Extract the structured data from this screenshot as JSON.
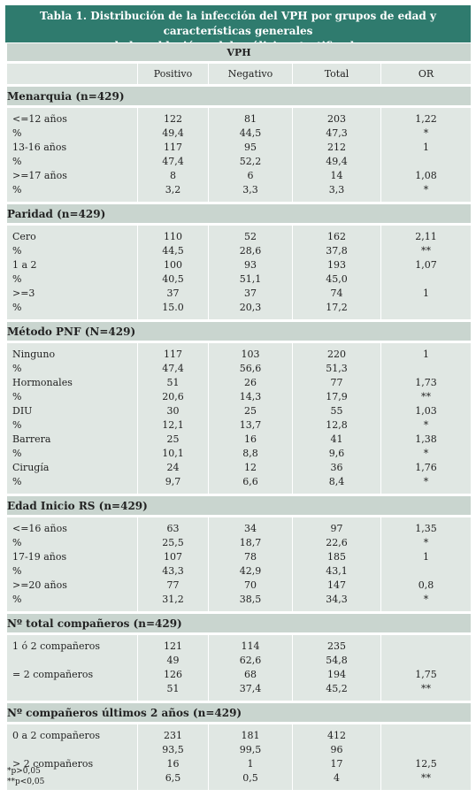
{
  "title_line1": "Tabla 1. Distribución de la infección del VPH por grupos de edad y características generales",
  "title_line2": "de la población y del análisis estratificado.",
  "vph_header": "VPH",
  "columns": [
    "",
    "Positivo",
    "Negativo",
    "Total",
    "OR"
  ],
  "sections": [
    {
      "heading": "Menarquia (n=429)",
      "rows": [
        [
          "<=12 años",
          "122",
          "81",
          "203",
          "1,22"
        ],
        [
          "%",
          "49,4",
          "44,5",
          "47,3",
          "*"
        ],
        [
          "13-16 años",
          "117",
          "95",
          "212",
          "1"
        ],
        [
          "%",
          "47,4",
          "52,2",
          "49,4",
          ""
        ],
        [
          ">=17 años",
          "8",
          "6",
          "14",
          "1,08"
        ],
        [
          "%",
          "3,2",
          "3,3",
          "3,3",
          "*"
        ]
      ]
    },
    {
      "heading": "Paridad (n=429)",
      "rows": [
        [
          "Cero",
          "110",
          "52",
          "162",
          "2,11"
        ],
        [
          "%",
          "44,5",
          "28,6",
          "37,8",
          "**"
        ],
        [
          "1 a 2",
          "100",
          "93",
          "193",
          "1,07"
        ],
        [
          "%",
          "40,5",
          "51,1",
          "45,0",
          ""
        ],
        [
          ">=3",
          "37",
          "37",
          "74",
          "1"
        ],
        [
          "%",
          "15.0",
          "20,3",
          "17,2",
          ""
        ]
      ]
    },
    {
      "heading": "Método PNF (N=429)",
      "rows": [
        [
          "Ninguno",
          "117",
          "103",
          "220",
          "1"
        ],
        [
          "%",
          "47,4",
          "56,6",
          "51,3",
          ""
        ],
        [
          "Hormonales",
          "51",
          "26",
          "77",
          "1,73"
        ],
        [
          "%",
          "20,6",
          "14,3",
          "17,9",
          "**"
        ],
        [
          "DIU",
          "30",
          "25",
          "55",
          "1,03"
        ],
        [
          "%",
          "12,1",
          "13,7",
          "12,8",
          "*"
        ],
        [
          "Barrera",
          "25",
          "16",
          "41",
          "1,38"
        ],
        [
          "%",
          "10,1",
          "8,8",
          "9,6",
          "*"
        ],
        [
          "Cirugía",
          "24",
          "12",
          "36",
          "1,76"
        ],
        [
          "%",
          "9,7",
          "6,6",
          "8,4",
          "*"
        ]
      ]
    },
    {
      "heading": "Edad Inicio RS (n=429)",
      "rows": [
        [
          "<=16 años",
          "63",
          "34",
          "97",
          "1,35"
        ],
        [
          "%",
          "25,5",
          "18,7",
          "22,6",
          "*"
        ],
        [
          "17-19 años",
          "107",
          "78",
          "185",
          "1"
        ],
        [
          "%",
          "43,3",
          "42,9",
          "43,1",
          ""
        ],
        [
          ">=20 años",
          "77",
          "70",
          "147",
          "0,8"
        ],
        [
          "%",
          "31,2",
          "38,5",
          "34,3",
          "*"
        ]
      ]
    },
    {
      "heading": "Nº total compañeros (n=429)",
      "rows": [
        [
          "1 ó 2 compañeros",
          "121",
          "114",
          "235",
          ""
        ],
        [
          "",
          "49",
          "62,6",
          "54,8",
          ""
        ],
        [
          "= 2 compañeros",
          "126",
          "68",
          "194",
          "1,75"
        ],
        [
          "",
          "51",
          "37,4",
          "45,2",
          "**"
        ]
      ]
    },
    {
      "heading": "Nº compañeros últimos 2 años (n=429)",
      "rows": [
        [
          "0 a 2 compañeros",
          "231",
          "181",
          "412",
          ""
        ],
        [
          "",
          "93,5",
          "99,5",
          "96",
          ""
        ],
        [
          "> 2 compañeros",
          "16",
          "1",
          "17",
          "12,5"
        ],
        [
          "",
          "6,5",
          "0,5",
          "4",
          "**"
        ]
      ]
    }
  ],
  "footnotes": [
    "*p>0,05",
    "**p<0,05"
  ]
}
